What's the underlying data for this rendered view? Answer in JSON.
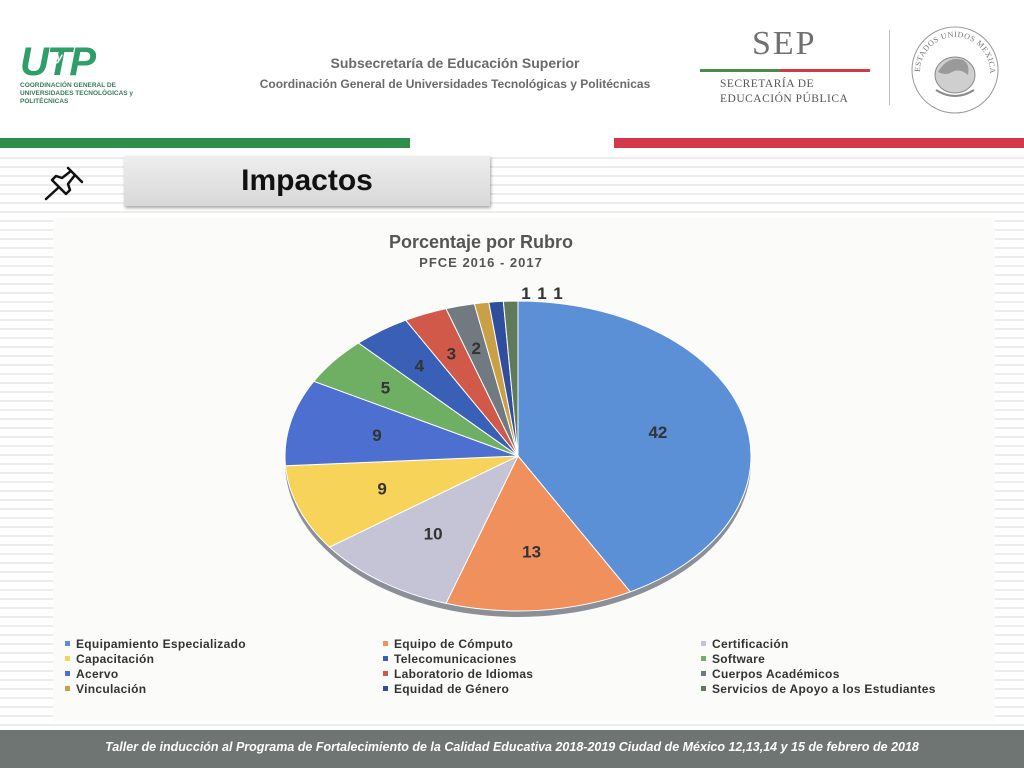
{
  "header": {
    "utp_logo_text": "UTP",
    "utp_logo_y": "y",
    "utp_logo_subtext": "COORDINACIÓN GENERAL DE UNIVERSIDADES TECNOLÓGICAS y POLITÉCNICAS",
    "subsecretaria": "Subsecretaría de Educación Superior",
    "coordinacion": "Coordinación General de Universidades Tecnológicas y Politécnicas",
    "sep_title": "SEP",
    "sep_line1": "SECRETARÍA DE",
    "sep_line2": "EDUCACIÓN PÚBLICA",
    "seal_text": "ESTADOS UNIDOS MEXICANOS"
  },
  "slide": {
    "title": "Impactos"
  },
  "chart_data": {
    "type": "pie",
    "title": "Porcentaje por Rubro",
    "subtitle": "PFCE 2016 - 2017",
    "categories": [
      "Equipamiento Especializado",
      "Equipo de Cómputo",
      "Certificación",
      "Capacitación",
      "Acervo",
      "Software",
      "Telecomunicaciones",
      "Laboratorio de Idiomas",
      "Cuerpos Académicos",
      "Vinculación",
      "Equidad de Género",
      "Servicios de Apoyo a los Estudiantes"
    ],
    "values": [
      42,
      13,
      10,
      9,
      9,
      5,
      4,
      3,
      2,
      1,
      1,
      1
    ],
    "colors": [
      "#5b8fd6",
      "#f0905c",
      "#c4c4d6",
      "#f7d35a",
      "#4d6fcf",
      "#6faf64",
      "#3a5fb6",
      "#d0594a",
      "#707a80",
      "#c9a045",
      "#2f4f9e",
      "#5f7a5a"
    ],
    "legend": [
      {
        "label": "Equipamiento Especializado",
        "color": "#5b8fd6"
      },
      {
        "label": "Equipo de Cómputo",
        "color": "#f0905c"
      },
      {
        "label": "Certificación",
        "color": "#c4c4d6"
      },
      {
        "label": "Capacitación",
        "color": "#f7d35a"
      },
      {
        "label": "Telecomunicaciones",
        "color": "#3a5fb6"
      },
      {
        "label": "Software",
        "color": "#6faf64"
      },
      {
        "label": "Acervo",
        "color": "#4d6fcf"
      },
      {
        "label": "Laboratorio de Idiomas",
        "color": "#d0594a"
      },
      {
        "label": "Cuerpos Académicos",
        "color": "#707a80"
      },
      {
        "label": "Vinculación",
        "color": "#c9a045"
      },
      {
        "label": "Equidad de Género",
        "color": "#2f4f9e"
      },
      {
        "label": "Servicios de Apoyo a los Estudiantes",
        "color": "#5f7a5a"
      }
    ],
    "legend_position": "bottom"
  },
  "footer": {
    "text": "Taller de inducción al Programa de Fortalecimiento de la Calidad Educativa 2018-2019 Ciudad de México 12,13,14 y 15 de febrero de 2018"
  }
}
